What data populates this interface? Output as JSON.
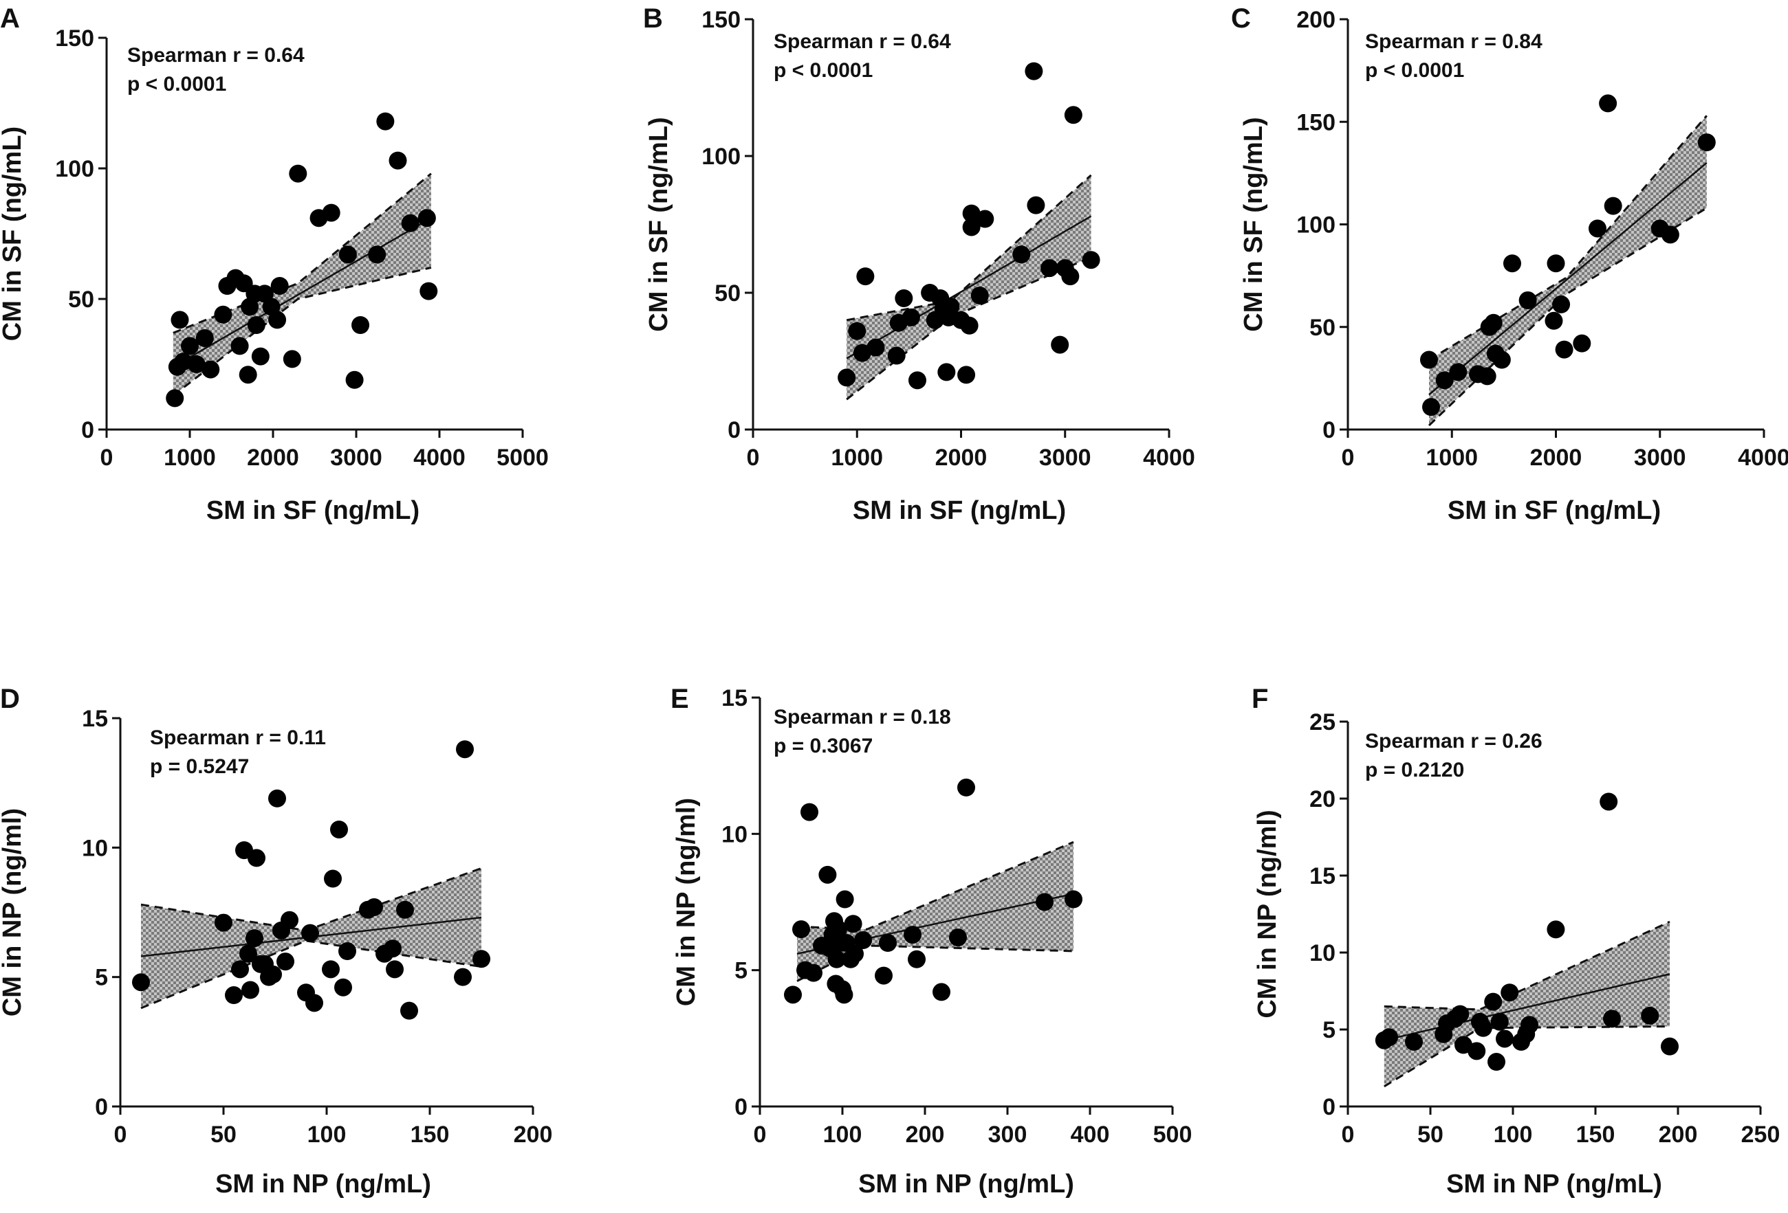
{
  "chart_data": [
    {
      "panel": "A",
      "type": "scatter",
      "xlabel": "SM in SF (ng/mL)",
      "ylabel": "CM in SF (ng/mL)",
      "xlim": [
        0,
        5000
      ],
      "ylim": [
        0,
        150
      ],
      "xticks": [
        0,
        1000,
        2000,
        3000,
        4000,
        5000
      ],
      "yticks": [
        0,
        50,
        100,
        150
      ],
      "stats": [
        "Spearman r = 0.64",
        "p  < 0.0001"
      ],
      "fit": {
        "x0": 800,
        "x1": 3900,
        "y0": 24,
        "y1": 81
      },
      "ci_upper": [
        [
          800,
          37
        ],
        [
          2300,
          56
        ],
        [
          3900,
          98
        ]
      ],
      "ci_lower": [
        [
          800,
          13
        ],
        [
          2300,
          50
        ],
        [
          3900,
          62
        ]
      ],
      "points": [
        [
          820,
          12
        ],
        [
          850,
          24
        ],
        [
          880,
          42
        ],
        [
          920,
          26
        ],
        [
          1000,
          32
        ],
        [
          1080,
          25
        ],
        [
          1180,
          35
        ],
        [
          1250,
          23
        ],
        [
          1400,
          44
        ],
        [
          1450,
          55
        ],
        [
          1550,
          58
        ],
        [
          1600,
          32
        ],
        [
          1650,
          56
        ],
        [
          1700,
          21
        ],
        [
          1720,
          47
        ],
        [
          1780,
          52
        ],
        [
          1800,
          40
        ],
        [
          1850,
          28
        ],
        [
          1900,
          52
        ],
        [
          1980,
          47
        ],
        [
          2050,
          42
        ],
        [
          2080,
          55
        ],
        [
          2230,
          27
        ],
        [
          2300,
          98
        ],
        [
          2550,
          81
        ],
        [
          2700,
          83
        ],
        [
          2900,
          67
        ],
        [
          2980,
          19
        ],
        [
          3050,
          40
        ],
        [
          3250,
          67
        ],
        [
          3350,
          118
        ],
        [
          3500,
          103
        ],
        [
          3650,
          79
        ],
        [
          3850,
          81
        ],
        [
          3870,
          53
        ]
      ]
    },
    {
      "panel": "B",
      "type": "scatter",
      "xlabel": "SM in SF (ng/mL)",
      "ylabel": "CM in SF (ng/mL)",
      "xlim": [
        0,
        4000
      ],
      "ylim": [
        0,
        150
      ],
      "xticks": [
        0,
        1000,
        2000,
        3000,
        4000
      ],
      "yticks": [
        0,
        50,
        100,
        150
      ],
      "stats": [
        "Spearman r = 0.64",
        "p  < 0.0001"
      ],
      "fit": {
        "x0": 900,
        "x1": 3250,
        "y0": 26,
        "y1": 78
      },
      "ci_upper": [
        [
          900,
          40
        ],
        [
          1900,
          47
        ],
        [
          3250,
          93
        ]
      ],
      "ci_lower": [
        [
          900,
          11
        ],
        [
          1900,
          41
        ],
        [
          3250,
          63
        ]
      ],
      "points": [
        [
          900,
          19
        ],
        [
          1000,
          36
        ],
        [
          1050,
          28
        ],
        [
          1080,
          56
        ],
        [
          1180,
          30
        ],
        [
          1380,
          27
        ],
        [
          1400,
          39
        ],
        [
          1450,
          48
        ],
        [
          1520,
          41
        ],
        [
          1580,
          18
        ],
        [
          1700,
          50
        ],
        [
          1750,
          40
        ],
        [
          1800,
          48
        ],
        [
          1830,
          44
        ],
        [
          1860,
          21
        ],
        [
          1880,
          41
        ],
        [
          1900,
          45
        ],
        [
          2000,
          40
        ],
        [
          2050,
          20
        ],
        [
          2080,
          38
        ],
        [
          2100,
          74
        ],
        [
          2100,
          79
        ],
        [
          2180,
          49
        ],
        [
          2230,
          77
        ],
        [
          2580,
          64
        ],
        [
          2700,
          131
        ],
        [
          2720,
          82
        ],
        [
          2850,
          59
        ],
        [
          2950,
          31
        ],
        [
          3000,
          59
        ],
        [
          3050,
          56
        ],
        [
          3080,
          115
        ],
        [
          3250,
          62
        ]
      ]
    },
    {
      "panel": "C",
      "type": "scatter",
      "xlabel": "SM in SF (ng/mL)",
      "ylabel": "CM in SF (ng/mL)",
      "xlim": [
        0,
        4000
      ],
      "ylim": [
        0,
        200
      ],
      "xticks": [
        0,
        1000,
        2000,
        3000,
        4000
      ],
      "yticks": [
        0,
        50,
        100,
        150,
        200
      ],
      "stats": [
        "Spearman r = 0.84",
        "p  < 0.0001"
      ],
      "fit": {
        "x0": 780,
        "x1": 3450,
        "y0": 17,
        "y1": 130
      },
      "ci_upper": [
        [
          780,
          34
        ],
        [
          2100,
          74
        ],
        [
          3450,
          153
        ]
      ],
      "ci_lower": [
        [
          780,
          2
        ],
        [
          2100,
          66
        ],
        [
          3450,
          108
        ]
      ],
      "points": [
        [
          780,
          34
        ],
        [
          800,
          11
        ],
        [
          930,
          24
        ],
        [
          1060,
          28
        ],
        [
          1250,
          27
        ],
        [
          1340,
          26
        ],
        [
          1360,
          50
        ],
        [
          1400,
          52
        ],
        [
          1420,
          37
        ],
        [
          1480,
          34
        ],
        [
          1580,
          81
        ],
        [
          1730,
          63
        ],
        [
          1980,
          53
        ],
        [
          2000,
          81
        ],
        [
          2050,
          61
        ],
        [
          2080,
          39
        ],
        [
          2250,
          42
        ],
        [
          2400,
          98
        ],
        [
          2500,
          159
        ],
        [
          2550,
          109
        ],
        [
          3000,
          98
        ],
        [
          3100,
          95
        ],
        [
          3450,
          140
        ]
      ]
    },
    {
      "panel": "D",
      "type": "scatter",
      "xlabel": "SM in NP (ng/mL)",
      "ylabel": "CM in NP (ng/ml)",
      "xlim": [
        0,
        200
      ],
      "ylim": [
        0,
        15
      ],
      "xticks": [
        0,
        50,
        100,
        150,
        200
      ],
      "yticks": [
        0,
        5,
        10,
        15
      ],
      "stats": [
        "Spearman r = 0.11",
        "p = 0.5247"
      ],
      "fit": {
        "x0": 10,
        "x1": 175,
        "y0": 5.8,
        "y1": 7.3
      },
      "ci_upper": [
        [
          10,
          7.8
        ],
        [
          90,
          6.8
        ],
        [
          175,
          9.2
        ]
      ],
      "ci_lower": [
        [
          10,
          3.8
        ],
        [
          90,
          6.4
        ],
        [
          175,
          5.4
        ]
      ],
      "points": [
        [
          10,
          4.8
        ],
        [
          50,
          7.1
        ],
        [
          55,
          4.3
        ],
        [
          58,
          5.3
        ],
        [
          60,
          9.9
        ],
        [
          62,
          5.9
        ],
        [
          63,
          4.5
        ],
        [
          65,
          6.5
        ],
        [
          66,
          9.6
        ],
        [
          68,
          5.5
        ],
        [
          70,
          5.5
        ],
        [
          72,
          5.0
        ],
        [
          74,
          5.1
        ],
        [
          76,
          11.9
        ],
        [
          78,
          6.8
        ],
        [
          80,
          5.6
        ],
        [
          82,
          7.2
        ],
        [
          90,
          4.4
        ],
        [
          92,
          6.7
        ],
        [
          94,
          4.0
        ],
        [
          102,
          5.3
        ],
        [
          103,
          8.8
        ],
        [
          106,
          10.7
        ],
        [
          108,
          4.6
        ],
        [
          110,
          6.0
        ],
        [
          120,
          7.6
        ],
        [
          123,
          7.7
        ],
        [
          128,
          5.9
        ],
        [
          132,
          6.1
        ],
        [
          133,
          5.3
        ],
        [
          138,
          7.6
        ],
        [
          140,
          3.7
        ],
        [
          166,
          5.0
        ],
        [
          167,
          13.8
        ],
        [
          175,
          5.7
        ]
      ]
    },
    {
      "panel": "E",
      "type": "scatter",
      "xlabel": "SM in NP (ng/mL)",
      "ylabel": "CM in NP (ng/ml)",
      "xlim": [
        0,
        500
      ],
      "ylim": [
        0,
        15
      ],
      "xticks": [
        0,
        100,
        200,
        300,
        400,
        500
      ],
      "yticks": [
        0,
        5,
        10,
        15
      ],
      "stats": [
        "Spearman r = 0.18",
        "p = 0.3067"
      ],
      "fit": {
        "x0": 45,
        "x1": 380,
        "y0": 5.6,
        "y1": 7.8
      },
      "ci_upper": [
        [
          45,
          6.6
        ],
        [
          130,
          6.5
        ],
        [
          380,
          9.7
        ]
      ],
      "ci_lower": [
        [
          45,
          4.6
        ],
        [
          130,
          5.9
        ],
        [
          380,
          5.7
        ]
      ],
      "points": [
        [
          40,
          4.1
        ],
        [
          50,
          6.5
        ],
        [
          55,
          5.0
        ],
        [
          60,
          10.8
        ],
        [
          65,
          4.9
        ],
        [
          75,
          5.9
        ],
        [
          82,
          8.5
        ],
        [
          85,
          5.8
        ],
        [
          88,
          6.3
        ],
        [
          90,
          6.8
        ],
        [
          92,
          4.5
        ],
        [
          93,
          5.4
        ],
        [
          95,
          6.5
        ],
        [
          97,
          6.0
        ],
        [
          100,
          4.3
        ],
        [
          102,
          4.1
        ],
        [
          103,
          7.6
        ],
        [
          105,
          6.0
        ],
        [
          110,
          5.4
        ],
        [
          113,
          6.7
        ],
        [
          115,
          5.6
        ],
        [
          125,
          6.1
        ],
        [
          150,
          4.8
        ],
        [
          155,
          6.0
        ],
        [
          185,
          6.3
        ],
        [
          190,
          5.4
        ],
        [
          240,
          6.2
        ],
        [
          220,
          4.2
        ],
        [
          250,
          11.7
        ],
        [
          345,
          7.5
        ],
        [
          380,
          7.6
        ]
      ]
    },
    {
      "panel": "F",
      "type": "scatter",
      "xlabel": "SM in NP (ng/mL)",
      "ylabel": "CM in NP (ng/ml)",
      "xlim": [
        0,
        250
      ],
      "ylim": [
        0,
        25
      ],
      "xticks": [
        0,
        50,
        100,
        150,
        200,
        250
      ],
      "yticks": [
        0,
        5,
        10,
        15,
        20,
        25
      ],
      "stats": [
        "Spearman r = 0.26",
        "p = 0.2120"
      ],
      "fit": {
        "x0": 22,
        "x1": 195,
        "y0": 4.3,
        "y1": 8.6
      },
      "ci_upper": [
        [
          22,
          6.5
        ],
        [
          80,
          6.3
        ],
        [
          195,
          12.0
        ]
      ],
      "ci_lower": [
        [
          22,
          1.3
        ],
        [
          80,
          5.1
        ],
        [
          195,
          5.2
        ]
      ],
      "points": [
        [
          22,
          4.3
        ],
        [
          25,
          4.5
        ],
        [
          40,
          4.2
        ],
        [
          58,
          4.7
        ],
        [
          60,
          5.4
        ],
        [
          65,
          5.7
        ],
        [
          68,
          6.0
        ],
        [
          70,
          4.0
        ],
        [
          78,
          3.6
        ],
        [
          80,
          5.5
        ],
        [
          82,
          5.1
        ],
        [
          88,
          6.8
        ],
        [
          90,
          2.9
        ],
        [
          92,
          5.5
        ],
        [
          95,
          4.4
        ],
        [
          98,
          7.4
        ],
        [
          105,
          4.2
        ],
        [
          108,
          4.7
        ],
        [
          110,
          5.3
        ],
        [
          126,
          11.5
        ],
        [
          158,
          19.8
        ],
        [
          160,
          5.7
        ],
        [
          183,
          5.9
        ],
        [
          195,
          3.9
        ]
      ]
    }
  ]
}
